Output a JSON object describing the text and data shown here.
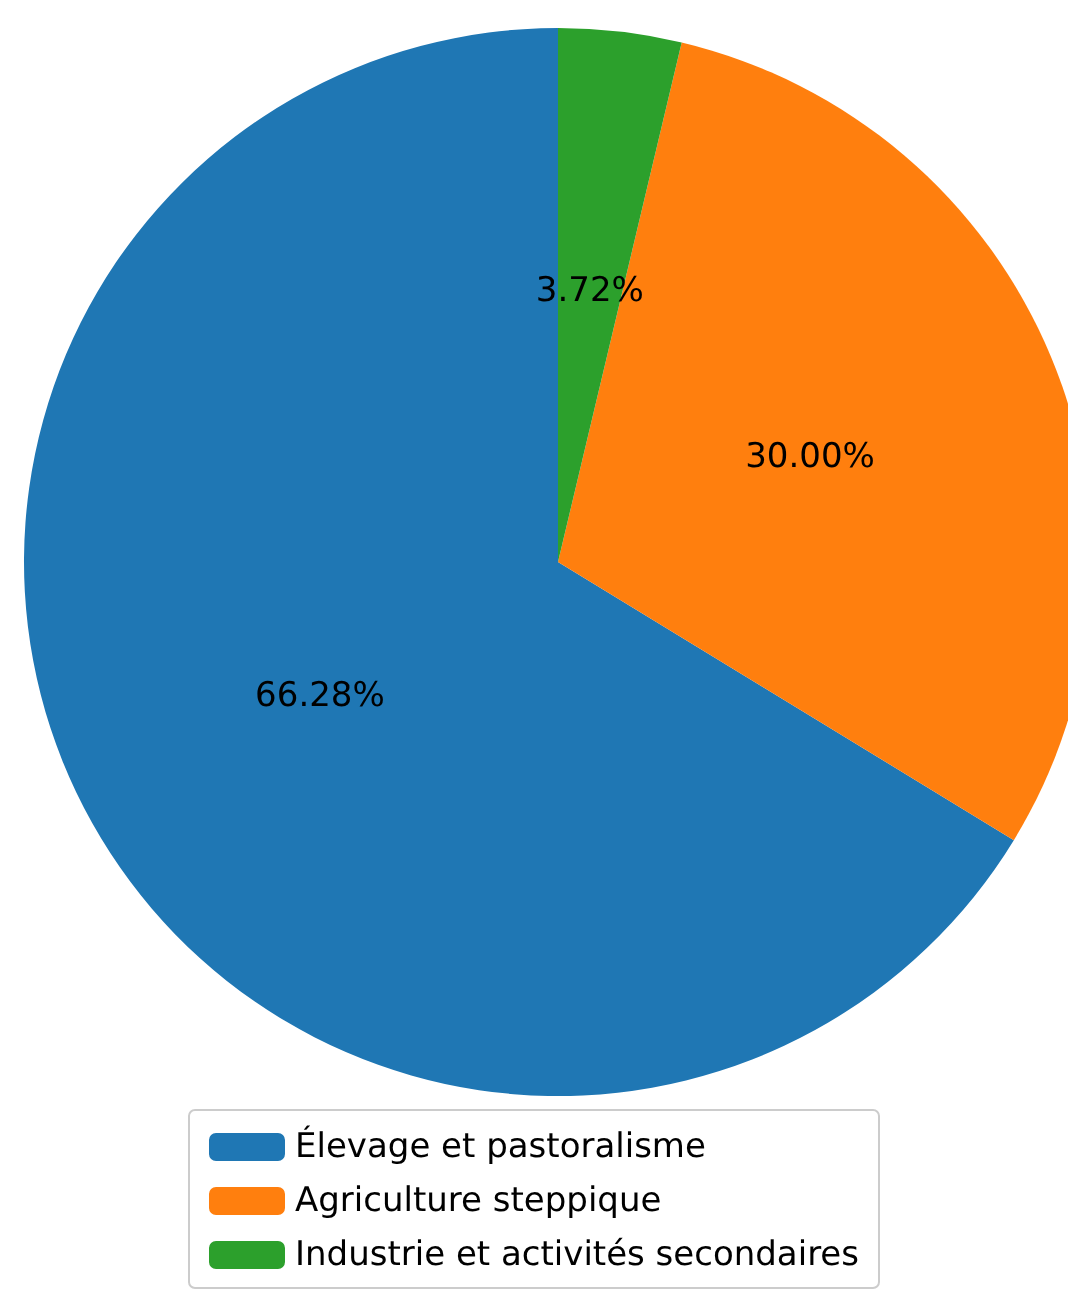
{
  "chart_data": {
    "type": "pie",
    "categories": [
      "Élevage et pastoralisme",
      "Agriculture steppique",
      "Industrie et activités secondaires"
    ],
    "values": [
      66.28,
      30.0,
      3.72
    ],
    "value_labels": [
      "66.28%",
      "30.00%",
      "3.72%"
    ],
    "colors": [
      "#1f77b4",
      "#ff7f0e",
      "#2ca02c"
    ],
    "legend": "bottom"
  }
}
